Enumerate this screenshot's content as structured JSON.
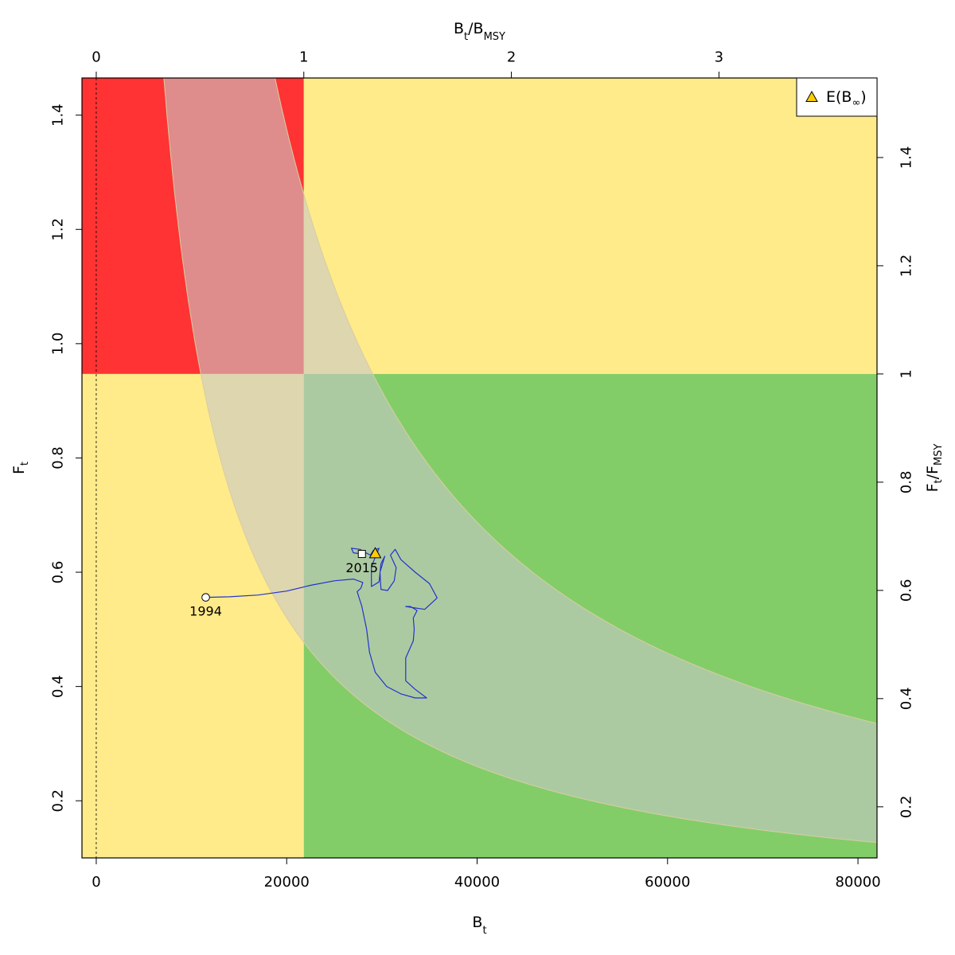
{
  "chart_data": {
    "type": "line",
    "title": "",
    "xlabel": "B",
    "xlabel_sub": "t",
    "ylabel": "F",
    "ylabel_sub": "t",
    "x2label": "B",
    "x2label_sub": "t",
    "x2label_den": "B",
    "x2label_den_sub": "MSY",
    "y2label": "F",
    "y2label_sub": "t",
    "y2label_den": "F",
    "y2label_den_sub": "MSY",
    "xlim": [
      -1500,
      82000
    ],
    "ylim": [
      0.1,
      1.465
    ],
    "x_ticks": [
      0,
      20000,
      40000,
      60000,
      80000
    ],
    "x_tick_labels": [
      "0",
      "20000",
      "40000",
      "60000",
      "80000"
    ],
    "y_ticks": [
      0.2,
      0.4,
      0.6,
      0.8,
      1.0,
      1.2,
      1.4
    ],
    "y_tick_labels": [
      "0.2",
      "0.4",
      "0.6",
      "0.8",
      "1.0",
      "1.2",
      "1.4"
    ],
    "bmsy": 21800,
    "fmsy": 0.947,
    "x2_ticks": [
      0,
      1,
      2,
      3
    ],
    "x2_tick_labels": [
      "0",
      "1",
      "2",
      "3"
    ],
    "y2_ticks": [
      0.2,
      0.4,
      0.6,
      0.8,
      1,
      1.2,
      1.4
    ],
    "y2_tick_labels": [
      "0.2",
      "0.4",
      "0.6",
      "0.8",
      "1",
      "1.2",
      "1.4"
    ],
    "grid": false,
    "legend_position": "top-right",
    "legend": [
      {
        "label": "E(B",
        "sub": "∞",
        "suffix": ")",
        "marker": "triangle"
      }
    ],
    "colors": {
      "red": "#ff3333",
      "yellow": "#ffeb8a",
      "green": "#82cd68",
      "ci_band": "#c8c8c8",
      "trajectory": "#2233cc",
      "triangle": "#ffcc00"
    },
    "msy_band_outer_c": 27500,
    "msy_band_inner_c": 10400,
    "trajectory": [
      [
        11500,
        0.556
      ],
      [
        14000,
        0.557
      ],
      [
        17000,
        0.56
      ],
      [
        20000,
        0.567
      ],
      [
        22500,
        0.577
      ],
      [
        25000,
        0.585
      ],
      [
        27000,
        0.588
      ],
      [
        28000,
        0.582
      ],
      [
        27800,
        0.572
      ],
      [
        27400,
        0.566
      ],
      [
        27900,
        0.54
      ],
      [
        28400,
        0.5
      ],
      [
        28700,
        0.46
      ],
      [
        29300,
        0.425
      ],
      [
        30500,
        0.4
      ],
      [
        32000,
        0.387
      ],
      [
        33500,
        0.38
      ],
      [
        34700,
        0.38
      ],
      [
        33500,
        0.395
      ],
      [
        32500,
        0.41
      ],
      [
        32500,
        0.45
      ],
      [
        33300,
        0.48
      ],
      [
        33400,
        0.5
      ],
      [
        33300,
        0.52
      ],
      [
        33700,
        0.533
      ],
      [
        33000,
        0.54
      ],
      [
        32500,
        0.54
      ],
      [
        34500,
        0.535
      ],
      [
        35800,
        0.555
      ],
      [
        35000,
        0.58
      ],
      [
        33500,
        0.6
      ],
      [
        32000,
        0.622
      ],
      [
        31400,
        0.64
      ],
      [
        30900,
        0.63
      ],
      [
        31500,
        0.608
      ],
      [
        31300,
        0.585
      ],
      [
        30600,
        0.568
      ],
      [
        29900,
        0.57
      ],
      [
        29800,
        0.6
      ],
      [
        30300,
        0.628
      ],
      [
        29900,
        0.615
      ],
      [
        29700,
        0.583
      ],
      [
        28900,
        0.575
      ],
      [
        28900,
        0.61
      ],
      [
        29700,
        0.642
      ],
      [
        29100,
        0.638
      ],
      [
        28800,
        0.63
      ],
      [
        28300,
        0.634
      ],
      [
        27700,
        0.64
      ],
      [
        26800,
        0.642
      ],
      [
        27000,
        0.634
      ],
      [
        27900,
        0.632
      ]
    ],
    "start_point": {
      "x": 11500,
      "y": 0.556,
      "label": "1994"
    },
    "end_point": {
      "x": 27900,
      "y": 0.632,
      "label": "2015"
    },
    "expected_point": {
      "x": 29300,
      "y": 0.633
    }
  }
}
